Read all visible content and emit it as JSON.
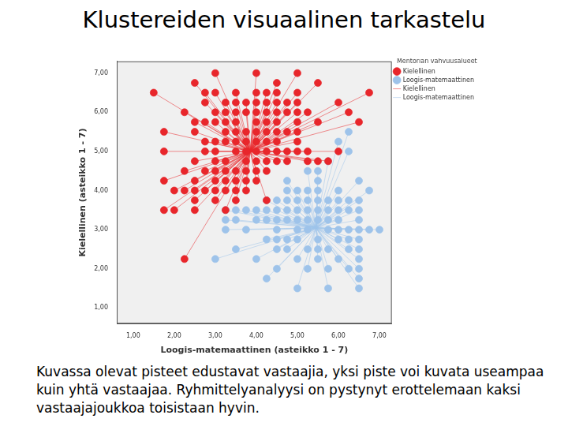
{
  "chart_data": {
    "type": "scatter",
    "title": "Klustereiden visuaalinen tarkastelu",
    "caption": "Kuvassa olevat pisteet edustavat vastaajia, yksi piste voi kuvata useampaa kuin yhtä vastaajaa. Ryhmittelyanalyysi on pystynyt erottelemaan kaksi vastaajajoukkoa toisistaan hyvin.",
    "x_label": "Loogis-matemaattinen (asteikko 1 - 7)",
    "y_label": "Kielellinen (asteikko 1 - 7)",
    "legend_title": "Mentorian vahvuusalueet",
    "legend": "right",
    "grid": false,
    "xlim": [
      0.6,
      7.3
    ],
    "ylim": [
      0.6,
      7.3
    ],
    "xticks": [
      {
        "value": 1,
        "label": "1,00"
      },
      {
        "value": 2,
        "label": "2,00"
      },
      {
        "value": 3,
        "label": "3,00"
      },
      {
        "value": 4,
        "label": "4,00"
      },
      {
        "value": 5,
        "label": "5,00"
      },
      {
        "value": 6,
        "label": "6,00"
      },
      {
        "value": 7,
        "label": "7,00"
      }
    ],
    "yticks": [
      {
        "value": 1,
        "label": "1,00"
      },
      {
        "value": 2,
        "label": "2,00"
      },
      {
        "value": 3,
        "label": "3,00"
      },
      {
        "value": 4,
        "label": "4,00"
      },
      {
        "value": 5,
        "label": "5,00"
      },
      {
        "value": 6,
        "label": "6,00"
      },
      {
        "value": 7,
        "label": "7,00"
      }
    ],
    "series": [
      {
        "name": "Kielellinen",
        "color": "#e8262b",
        "marker": "circle",
        "line_style": "solid",
        "centroid": [
          3.85,
          5.0
        ],
        "x": [
          3.0,
          4.0,
          5.0,
          2.5,
          4.5,
          5.5,
          1.5,
          2.75,
          3.0,
          3.5,
          4.0,
          4.25,
          4.5,
          5.0,
          6.75,
          2.75,
          3.25,
          3.5,
          3.75,
          4.0,
          4.25,
          4.5,
          4.75,
          5.0,
          6.0,
          2.25,
          3.0,
          3.25,
          3.5,
          3.75,
          4.0,
          4.25,
          4.5,
          4.75,
          5.0,
          5.25,
          6.25,
          2.5,
          2.75,
          3.0,
          3.25,
          3.5,
          4.0,
          4.25,
          4.5,
          5.0,
          5.5,
          6.5,
          1.75,
          2.5,
          3.25,
          3.5,
          3.75,
          4.0,
          4.25,
          4.5,
          4.75,
          5.0,
          2.75,
          3.0,
          3.25,
          3.5,
          3.75,
          4.0,
          4.25,
          4.5,
          5.0,
          1.75,
          2.75,
          3.0,
          3.5,
          3.75,
          4.0,
          4.25,
          4.5,
          4.75,
          5.0,
          5.25,
          6.0,
          2.5,
          3.0,
          3.25,
          3.75,
          4.0,
          4.25,
          4.5,
          4.75,
          5.25,
          5.5,
          5.75,
          2.25,
          2.75,
          3.0,
          3.25,
          3.5,
          3.75,
          4.0,
          4.25,
          1.75,
          2.5,
          3.0,
          3.25,
          3.5,
          3.75,
          4.0,
          2.0,
          2.25,
          2.5,
          2.75,
          3.0,
          3.25,
          3.5,
          3.75,
          2.5,
          3.0,
          3.5,
          4.25,
          1.75,
          2.0,
          2.5,
          3.25,
          2.25
        ],
        "values": [
          7.0,
          7.0,
          7.0,
          6.75,
          6.75,
          6.75,
          6.5,
          6.5,
          6.5,
          6.5,
          6.5,
          6.5,
          6.5,
          6.5,
          6.5,
          6.25,
          6.25,
          6.25,
          6.25,
          6.25,
          6.25,
          6.25,
          6.25,
          6.25,
          6.25,
          6.0,
          6.0,
          6.0,
          6.0,
          6.0,
          6.0,
          6.0,
          6.0,
          6.0,
          6.0,
          6.0,
          6.0,
          5.75,
          5.75,
          5.75,
          5.75,
          5.75,
          5.75,
          5.75,
          5.75,
          5.75,
          5.75,
          5.75,
          5.5,
          5.5,
          5.5,
          5.5,
          5.5,
          5.5,
          5.5,
          5.5,
          5.5,
          5.5,
          5.25,
          5.25,
          5.25,
          5.25,
          5.25,
          5.25,
          5.25,
          5.25,
          5.25,
          5.0,
          5.0,
          5.0,
          5.0,
          5.0,
          5.0,
          5.0,
          5.0,
          5.0,
          5.0,
          5.0,
          5.0,
          4.75,
          4.75,
          4.75,
          4.75,
          4.75,
          4.75,
          4.75,
          4.75,
          4.75,
          4.75,
          4.75,
          4.5,
          4.5,
          4.5,
          4.5,
          4.5,
          4.5,
          4.5,
          4.5,
          4.25,
          4.25,
          4.25,
          4.25,
          4.25,
          4.25,
          4.25,
          4.0,
          4.0,
          4.0,
          4.0,
          4.0,
          4.0,
          4.0,
          4.0,
          3.75,
          3.75,
          3.75,
          3.75,
          3.5,
          3.5,
          3.5,
          3.5,
          2.25
        ]
      },
      {
        "name": "Loogis-matemaattinen",
        "color": "#9ec3ea",
        "marker": "circle",
        "line_style": "solid",
        "centroid": [
          5.45,
          3.05
        ],
        "x": [
          6.25,
          6.0,
          6.25,
          5.75,
          5.25,
          5.5,
          4.75,
          5.5,
          6.5,
          4.75,
          5.0,
          5.25,
          5.5,
          6.0,
          6.75,
          4.25,
          4.5,
          4.75,
          5.0,
          5.25,
          5.5,
          5.75,
          6.0,
          6.25,
          6.5,
          3.25,
          3.5,
          3.75,
          4.0,
          4.25,
          4.5,
          4.75,
          5.0,
          5.25,
          5.5,
          5.75,
          6.0,
          6.25,
          6.5,
          3.25,
          3.5,
          4.0,
          4.25,
          4.5,
          4.75,
          5.0,
          5.25,
          5.5,
          5.75,
          6.0,
          6.5,
          3.25,
          3.75,
          4.5,
          5.0,
          5.25,
          5.75,
          6.0,
          6.25,
          6.5,
          6.75,
          7.0,
          4.25,
          4.5,
          4.75,
          5.0,
          5.5,
          6.0,
          6.25,
          6.5,
          3.5,
          4.5,
          4.75,
          5.25,
          5.5,
          5.75,
          6.25,
          6.5,
          3.0,
          4.0,
          5.0,
          5.5,
          6.0,
          6.5,
          4.5,
          5.25,
          5.75,
          6.25,
          6.5,
          4.25,
          6.5,
          5.0,
          5.75,
          6.5
        ],
        "values": [
          5.5,
          5.25,
          5.0,
          4.75,
          4.5,
          4.5,
          4.25,
          4.25,
          4.25,
          4.0,
          4.0,
          4.0,
          4.0,
          4.0,
          4.0,
          3.75,
          3.75,
          3.75,
          3.75,
          3.75,
          3.75,
          3.75,
          3.75,
          3.75,
          3.75,
          3.5,
          3.5,
          3.5,
          3.5,
          3.5,
          3.5,
          3.5,
          3.5,
          3.5,
          3.5,
          3.5,
          3.5,
          3.5,
          3.5,
          3.25,
          3.25,
          3.25,
          3.25,
          3.25,
          3.25,
          3.25,
          3.25,
          3.25,
          3.25,
          3.25,
          3.25,
          3.0,
          3.0,
          3.0,
          3.0,
          3.0,
          3.0,
          3.0,
          3.0,
          3.0,
          3.0,
          3.0,
          2.75,
          2.75,
          2.75,
          2.75,
          2.75,
          2.75,
          2.75,
          2.75,
          2.5,
          2.5,
          2.5,
          2.5,
          2.5,
          2.5,
          2.5,
          2.5,
          2.25,
          2.25,
          2.25,
          2.25,
          2.25,
          2.25,
          2.0,
          2.0,
          2.0,
          2.0,
          2.0,
          1.75,
          1.75,
          1.5,
          1.5,
          1.5
        ]
      }
    ]
  }
}
